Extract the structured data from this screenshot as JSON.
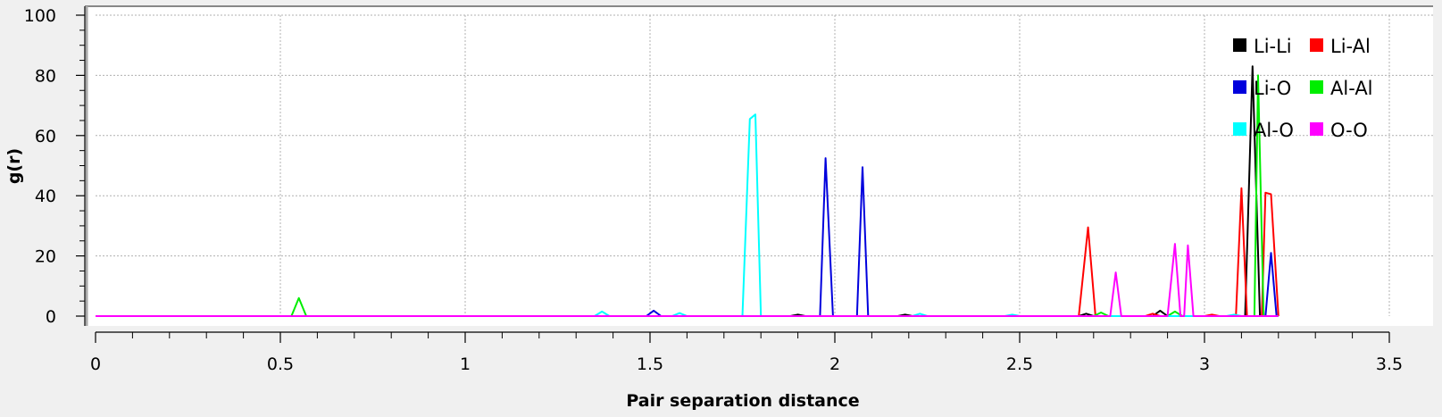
{
  "chart_data": {
    "type": "line",
    "title": "",
    "xlabel": "Pair separation distance",
    "ylabel": "g(r)",
    "xlim": [
      0,
      3.5
    ],
    "ylim": [
      0,
      100
    ],
    "x_ticks": [
      "0",
      "0.5",
      "1",
      "1.5",
      "2",
      "2.5",
      "3",
      "3.5"
    ],
    "y_ticks": [
      "0",
      "20",
      "40",
      "60",
      "80",
      "100"
    ],
    "grid": true,
    "legend_position": "top-right",
    "series": [
      {
        "name": "Li-Li",
        "color": "#000000",
        "points": [
          [
            0,
            0
          ],
          [
            1.88,
            0
          ],
          [
            1.9,
            0.5
          ],
          [
            1.92,
            0
          ],
          [
            2.17,
            0
          ],
          [
            2.19,
            0.5
          ],
          [
            2.21,
            0
          ],
          [
            2.66,
            0
          ],
          [
            2.68,
            0.8
          ],
          [
            2.7,
            0
          ],
          [
            2.86,
            0
          ],
          [
            2.88,
            1.8
          ],
          [
            2.9,
            0
          ],
          [
            3.11,
            0
          ],
          [
            3.13,
            83
          ],
          [
            3.15,
            0
          ],
          [
            3.2,
            0
          ]
        ]
      },
      {
        "name": "Li-Al",
        "color": "#ff0000",
        "points": [
          [
            0,
            0
          ],
          [
            2.66,
            0
          ],
          [
            2.685,
            29.5
          ],
          [
            2.705,
            0
          ],
          [
            2.84,
            0
          ],
          [
            2.86,
            0.8
          ],
          [
            2.88,
            0
          ],
          [
            3.0,
            0
          ],
          [
            3.02,
            0.5
          ],
          [
            3.04,
            0
          ],
          [
            3.085,
            0
          ],
          [
            3.1,
            42.5
          ],
          [
            3.115,
            0
          ],
          [
            3.155,
            0
          ],
          [
            3.165,
            41
          ],
          [
            3.18,
            40.5
          ],
          [
            3.2,
            0
          ]
        ]
      },
      {
        "name": "Li-O",
        "color": "#0000dd",
        "points": [
          [
            0,
            0
          ],
          [
            1.49,
            0
          ],
          [
            1.51,
            1.8
          ],
          [
            1.53,
            0
          ],
          [
            1.96,
            0
          ],
          [
            1.975,
            52.5
          ],
          [
            1.995,
            0
          ],
          [
            2.06,
            0
          ],
          [
            2.075,
            49.5
          ],
          [
            2.09,
            0
          ],
          [
            3.165,
            0
          ],
          [
            3.18,
            21
          ],
          [
            3.195,
            0
          ],
          [
            3.2,
            0
          ]
        ]
      },
      {
        "name": "Al-Al",
        "color": "#00ee00",
        "points": [
          [
            0,
            0
          ],
          [
            0.53,
            0
          ],
          [
            0.55,
            6
          ],
          [
            0.57,
            0
          ],
          [
            2.7,
            0
          ],
          [
            2.72,
            1.2
          ],
          [
            2.74,
            0
          ],
          [
            2.9,
            0
          ],
          [
            2.92,
            1.5
          ],
          [
            2.94,
            0
          ],
          [
            3.135,
            0
          ],
          [
            3.145,
            80
          ],
          [
            3.16,
            0
          ],
          [
            3.2,
            0
          ]
        ]
      },
      {
        "name": "Al-O",
        "color": "#00ffff",
        "points": [
          [
            0,
            0
          ],
          [
            1.35,
            0
          ],
          [
            1.37,
            1.5
          ],
          [
            1.39,
            0
          ],
          [
            1.56,
            0
          ],
          [
            1.58,
            1
          ],
          [
            1.6,
            0
          ],
          [
            1.75,
            0
          ],
          [
            1.77,
            65.5
          ],
          [
            1.785,
            67
          ],
          [
            1.8,
            0
          ],
          [
            2.21,
            0
          ],
          [
            2.23,
            0.8
          ],
          [
            2.25,
            0
          ],
          [
            2.46,
            0
          ],
          [
            2.48,
            0.5
          ],
          [
            2.5,
            0
          ],
          [
            3.06,
            0
          ],
          [
            3.08,
            0.5
          ],
          [
            3.1,
            0
          ],
          [
            3.2,
            0
          ]
        ]
      },
      {
        "name": "O-O",
        "color": "#ff00ff",
        "points": [
          [
            0,
            0
          ],
          [
            2.745,
            0
          ],
          [
            2.76,
            14.5
          ],
          [
            2.775,
            0
          ],
          [
            2.9,
            0
          ],
          [
            2.92,
            24
          ],
          [
            2.935,
            0
          ],
          [
            2.945,
            0
          ],
          [
            2.955,
            23.5
          ],
          [
            2.97,
            0
          ],
          [
            3.2,
            0
          ]
        ]
      }
    ]
  }
}
